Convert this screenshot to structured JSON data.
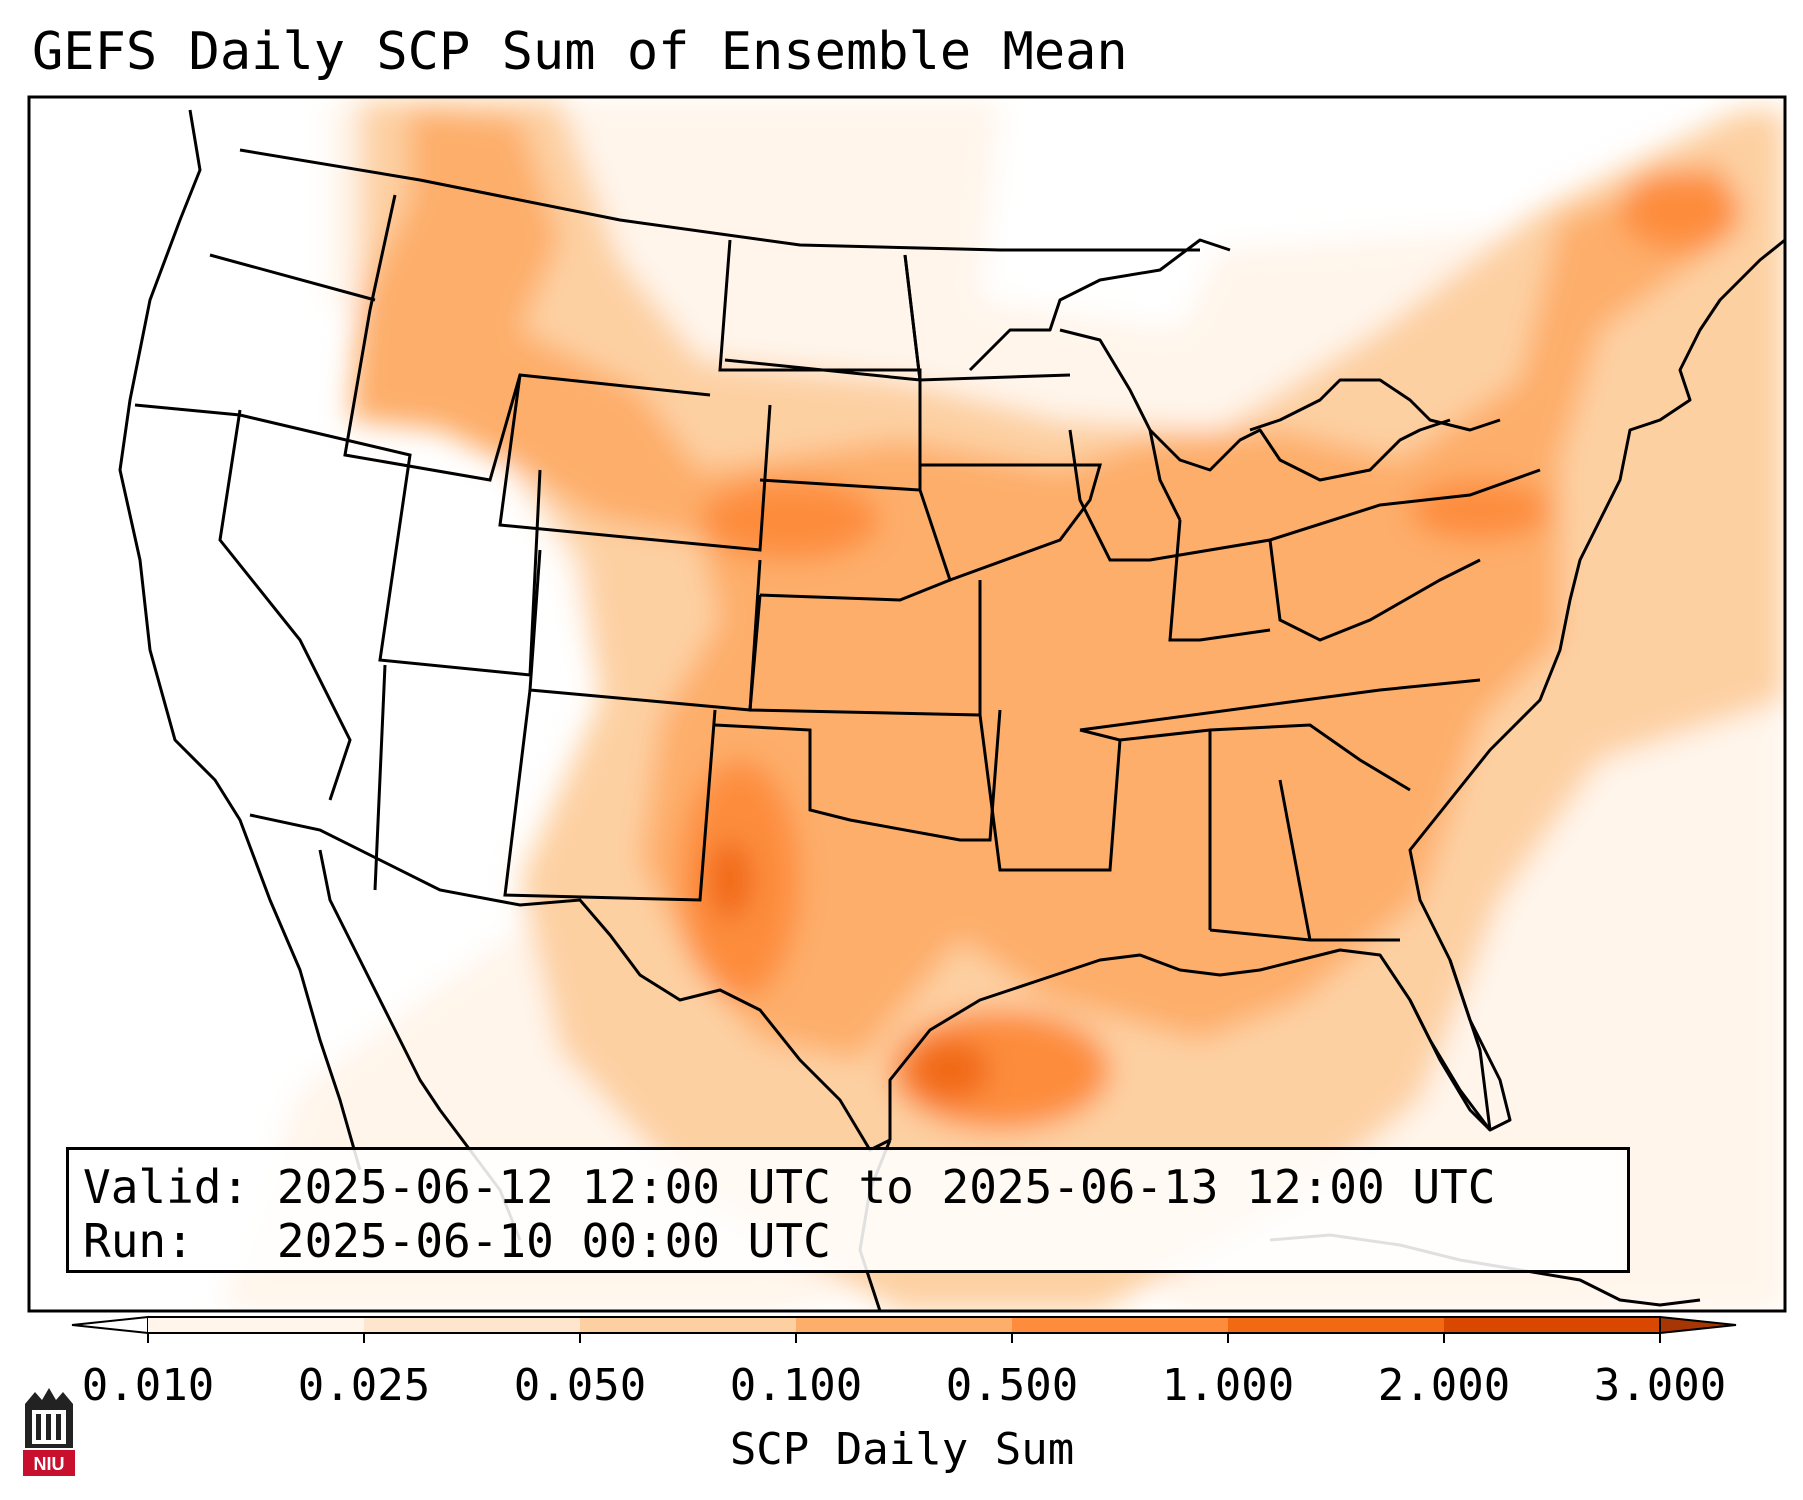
{
  "title": "GEFS Daily SCP Sum of Ensemble Mean",
  "info": {
    "valid_label": "Valid:",
    "valid_value": "2025-06-12 12:00 UTC to 2025-06-13 12:00 UTC",
    "run_label": "Run:",
    "run_value": "2025-06-10 00:00 UTC"
  },
  "colorbar": {
    "label": "SCP Daily Sum",
    "ticks": [
      "0.010",
      "0.025",
      "0.050",
      "0.100",
      "0.500",
      "1.000",
      "2.000",
      "3.000"
    ],
    "colors": [
      "#fff5eb",
      "#fee6ce",
      "#fdd0a2",
      "#fdae6b",
      "#fd8d3c",
      "#f16913",
      "#d94801"
    ],
    "extend_min_color": "#ffffff",
    "extend_max_color": "#a63603"
  },
  "logo": {
    "text": "NIU",
    "color": "#c8102e"
  },
  "map": {
    "projection": "Lambert Conformal (CONUS)",
    "features": [
      "coastlines",
      "state-borders",
      "country-borders"
    ],
    "field": "SCP Daily Sum"
  }
}
